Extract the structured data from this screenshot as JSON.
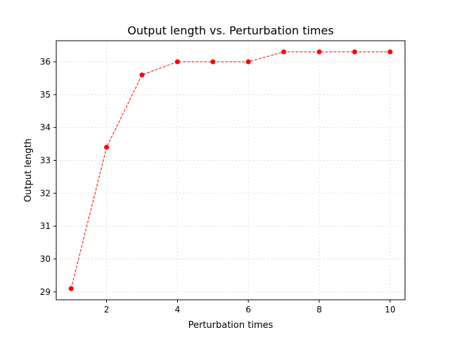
{
  "chart_data": {
    "type": "line",
    "title": "Output length vs. Perturbation times",
    "xlabel": "Perturbation times",
    "ylabel": "Output length",
    "xlim": [
      0.58,
      10.42
    ],
    "ylim": [
      28.76,
      36.64
    ],
    "xticks": [
      2,
      4,
      6,
      8,
      10
    ],
    "yticks": [
      29,
      30,
      31,
      32,
      33,
      34,
      35,
      36
    ],
    "grid": true,
    "series": [
      {
        "color": "#ff0000",
        "line_style": "dashed",
        "marker": "circle",
        "x": [
          1,
          2,
          3,
          4,
          5,
          6,
          7,
          8,
          9,
          10
        ],
        "y": [
          29.1,
          33.4,
          35.6,
          36.0,
          36.0,
          36.0,
          36.3,
          36.3,
          36.3,
          36.3
        ]
      }
    ]
  }
}
